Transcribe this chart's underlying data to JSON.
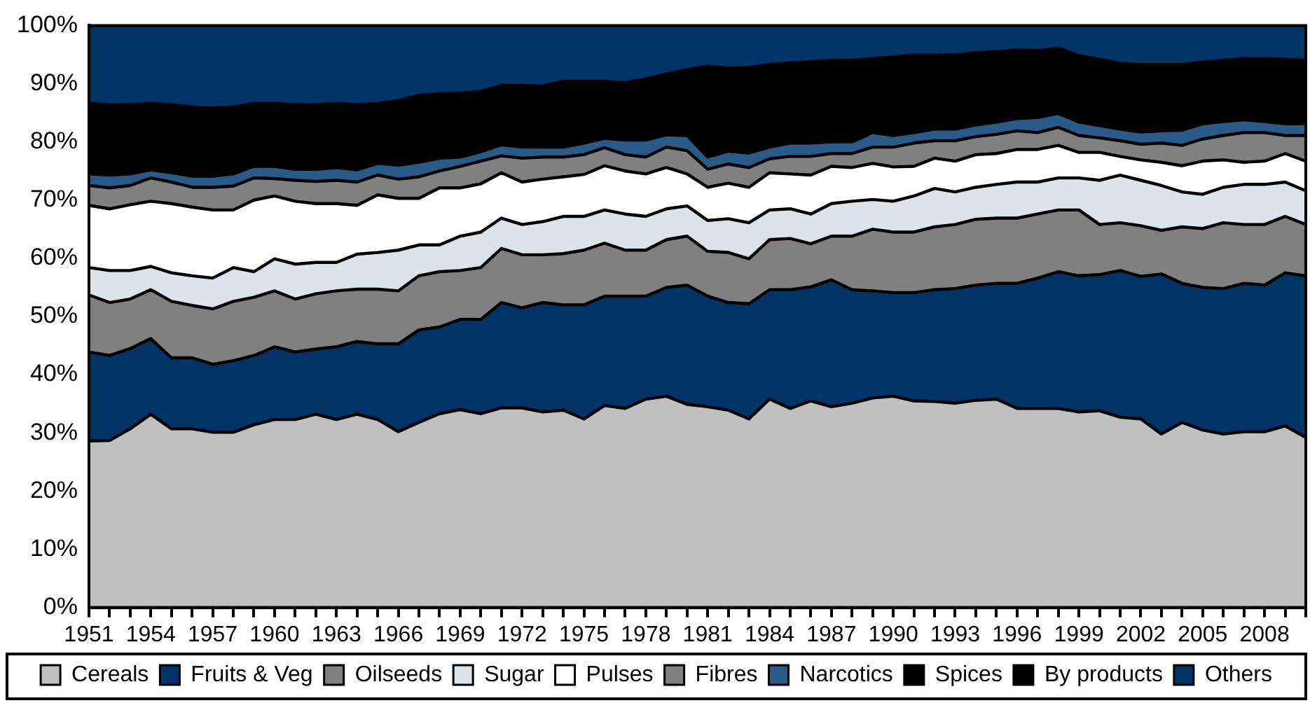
{
  "chart_data": {
    "type": "area",
    "stacked": true,
    "legend": "bottom",
    "marker": "none",
    "categories": [
      "1951",
      null,
      null,
      "1954",
      null,
      null,
      "1957",
      null,
      null,
      "1960",
      null,
      null,
      "1963",
      null,
      null,
      "1966",
      null,
      null,
      "1969",
      null,
      null,
      "1972",
      null,
      null,
      "1975",
      null,
      null,
      "1978",
      null,
      null,
      "1981",
      null,
      null,
      "1984",
      null,
      null,
      "1987",
      null,
      null,
      "1990",
      null,
      null,
      "1993",
      null,
      null,
      "1996",
      null,
      null,
      "1999",
      null,
      null,
      "2002",
      null,
      null,
      "2005",
      null,
      null,
      "2008",
      null,
      null
    ],
    "ylim": [
      0,
      100
    ],
    "yticks": [
      {
        "value": 0,
        "label": "0%"
      },
      {
        "value": 10,
        "label": "10%"
      },
      {
        "value": 20,
        "label": "20%"
      },
      {
        "value": 30,
        "label": "30%"
      },
      {
        "value": 40,
        "label": "40%"
      },
      {
        "value": 50,
        "label": "50%"
      },
      {
        "value": 60,
        "label": "60%"
      },
      {
        "value": 70,
        "label": "70%"
      },
      {
        "value": 80,
        "label": "80%"
      },
      {
        "value": 90,
        "label": "90%"
      },
      {
        "value": 100,
        "label": "100%"
      }
    ],
    "series": [
      {
        "name": "Cereals",
        "color": "#c0c0c0",
        "values": [
          28.6,
          28.7,
          30.7,
          33.2,
          30.7,
          30.7,
          30.1,
          30.1,
          31.4,
          32.3,
          32.3,
          33.2,
          32.3,
          33.2,
          32.3,
          30.2,
          31.8,
          33.3,
          34.0,
          33.3,
          34.3,
          34.3,
          33.6,
          33.9,
          32.4,
          34.7,
          34.2,
          35.8,
          36.3,
          34.9,
          34.5,
          33.9,
          32.4,
          35.8,
          34.2,
          35.5,
          34.5,
          35.1,
          36.0,
          36.3,
          35.5,
          35.4,
          35.1,
          35.6,
          35.8,
          34.2,
          34.2,
          34.2,
          33.6,
          33.8,
          32.7,
          32.4,
          29.8,
          31.8,
          30.5,
          29.8,
          30.2,
          30.2,
          31.2,
          29.2
        ]
      },
      {
        "name": "Fruits & Veg",
        "color": "#003366",
        "values": [
          15.3,
          14.6,
          13.8,
          13.0,
          12.2,
          12.2,
          11.7,
          12.3,
          11.9,
          12.5,
          11.6,
          11.2,
          12.5,
          12.5,
          13.0,
          15.1,
          15.9,
          14.9,
          15.5,
          16.2,
          18.1,
          17.2,
          18.8,
          18.1,
          19.6,
          18.8,
          19.3,
          17.7,
          18.7,
          20.5,
          19.0,
          18.5,
          19.8,
          18.8,
          20.4,
          19.6,
          21.8,
          19.5,
          18.4,
          17.8,
          18.6,
          19.2,
          19.7,
          19.8,
          19.9,
          21.5,
          22.4,
          23.5,
          23.4,
          23.4,
          25.2,
          24.5,
          27.5,
          23.9,
          24.5,
          25.0,
          25.5,
          25.2,
          26.3,
          27.8
        ]
      },
      {
        "name": "Oilseeds",
        "color": "#808080",
        "values": [
          9.8,
          9.1,
          8.5,
          8.4,
          9.7,
          9.0,
          9.5,
          10.2,
          10.0,
          9.6,
          9.1,
          9.5,
          9.6,
          9.0,
          9.4,
          9.1,
          9.3,
          9.5,
          8.4,
          8.9,
          9.3,
          9.1,
          8.2,
          8.8,
          9.4,
          9.1,
          7.9,
          7.9,
          8.2,
          8.4,
          7.7,
          8.6,
          7.7,
          8.6,
          8.8,
          7.4,
          7.5,
          9.2,
          10.6,
          10.4,
          10.4,
          10.8,
          11.0,
          11.3,
          11.2,
          11.2,
          11.0,
          10.6,
          11.3,
          8.6,
          8.2,
          8.7,
          7.5,
          9.7,
          10.1,
          11.3,
          10.1,
          10.4,
          9.7,
          8.8
        ]
      },
      {
        "name": "Sugar",
        "color": "#dde3ea",
        "values": [
          4.7,
          5.5,
          4.9,
          4.0,
          4.9,
          5.1,
          5.3,
          5.8,
          4.4,
          5.5,
          6.0,
          5.4,
          4.9,
          6.0,
          6.3,
          7.0,
          5.3,
          4.6,
          5.9,
          6.1,
          5.2,
          5.2,
          5.7,
          6.4,
          5.8,
          5.7,
          6.2,
          5.8,
          5.3,
          5.2,
          5.3,
          5.8,
          6.2,
          5.1,
          5.1,
          5.1,
          5.6,
          6.0,
          5.1,
          5.3,
          6.2,
          6.6,
          5.6,
          5.5,
          5.8,
          6.2,
          5.5,
          5.5,
          5.5,
          7.6,
          8.2,
          7.8,
          7.7,
          6.0,
          5.9,
          6.1,
          6.9,
          6.9,
          5.9,
          5.8
        ]
      },
      {
        "name": "Pulses",
        "color": "#ffffff",
        "values": [
          10.7,
          10.6,
          11.3,
          11.2,
          11.9,
          11.8,
          11.7,
          9.9,
          12.3,
          10.8,
          10.8,
          10.1,
          10.1,
          8.4,
          9.9,
          8.9,
          8.0,
          9.8,
          8.3,
          8.3,
          7.8,
          7.3,
          7.3,
          6.8,
          7.2,
          7.6,
          7.4,
          7.3,
          7.1,
          5.5,
          5.7,
          6.1,
          6.1,
          6.4,
          6.0,
          6.7,
          6.4,
          5.8,
          6.2,
          5.9,
          5.1,
          5.2,
          5.3,
          5.6,
          5.3,
          5.6,
          5.6,
          5.6,
          4.4,
          4.8,
          3.2,
          3.5,
          4.0,
          4.5,
          5.7,
          4.7,
          3.8,
          4.0,
          4.9,
          5.1
        ]
      },
      {
        "name": "Fibres",
        "color": "#808080",
        "values": [
          3.4,
          3.6,
          3.3,
          4.0,
          3.7,
          3.4,
          3.9,
          4.1,
          3.8,
          3.0,
          3.6,
          3.8,
          4.0,
          4.0,
          3.4,
          3.3,
          3.7,
          2.9,
          3.7,
          3.9,
          2.9,
          4.1,
          3.8,
          3.4,
          3.4,
          3.1,
          2.8,
          2.9,
          3.5,
          4.0,
          3.1,
          3.3,
          3.4,
          2.4,
          3.0,
          3.2,
          2.2,
          2.4,
          2.8,
          3.4,
          4.0,
          3.0,
          3.5,
          3.1,
          3.3,
          3.2,
          2.9,
          3.1,
          2.9,
          2.5,
          2.7,
          2.7,
          3.3,
          3.5,
          3.8,
          4.2,
          5.1,
          4.9,
          3.1,
          4.4
        ]
      },
      {
        "name": "Narcotics",
        "color": "#2a5a88",
        "values": [
          2.0,
          2.2,
          2.0,
          1.4,
          1.6,
          1.9,
          1.9,
          2.1,
          2.0,
          2.1,
          1.9,
          2.1,
          2.2,
          2.1,
          2.0,
          2.4,
          2.5,
          2.2,
          1.6,
          1.6,
          1.9,
          1.9,
          1.7,
          1.7,
          2.0,
          1.6,
          2.5,
          2.9,
          2.1,
          2.6,
          2.1,
          2.2,
          2.5,
          2.0,
          2.3,
          2.3,
          2.0,
          2.0,
          2.5,
          2.0,
          1.8,
          2.0,
          2.0,
          2.0,
          2.1,
          2.1,
          2.6,
          2.4,
          2.3,
          2.1,
          2.0,
          2.1,
          2.1,
          2.6,
          2.6,
          2.4,
          2.2,
          1.9,
          2.0,
          2.0
        ]
      },
      {
        "name": "Spices",
        "color": "#000000",
        "values": [
          2.0,
          2.0,
          2.0,
          2.0,
          2.0,
          2.0,
          2.0,
          2.0,
          2.0,
          2.0,
          2.0,
          2.0,
          2.0,
          2.0,
          2.0,
          2.0,
          2.0,
          2.0,
          2.0,
          2.0,
          2.0,
          2.0,
          2.0,
          2.0,
          2.0,
          2.0,
          2.0,
          2.0,
          2.0,
          2.0,
          2.0,
          2.0,
          2.0,
          2.0,
          2.0,
          2.0,
          2.0,
          2.0,
          2.0,
          2.0,
          2.0,
          2.0,
          2.0,
          2.0,
          2.0,
          2.0,
          2.0,
          2.0,
          2.0,
          2.0,
          2.0,
          2.0,
          2.0,
          2.0,
          2.0,
          2.0,
          2.0,
          2.0,
          2.0,
          2.0
        ]
      },
      {
        "name": "By products",
        "color": "#000000",
        "values": [
          10.1,
          10.1,
          9.9,
          9.4,
          9.7,
          9.9,
          9.7,
          9.5,
          8.8,
          8.8,
          9.1,
          9.1,
          9.0,
          9.2,
          8.3,
          9.1,
          9.5,
          9.1,
          9.0,
          8.4,
          8.2,
          8.6,
          8.5,
          9.3,
          8.6,
          7.8,
          7.9,
          8.5,
          8.5,
          9.3,
          13.6,
          12.3,
          12.7,
          12.2,
          11.8,
          12.0,
          12.0,
          12.0,
          10.7,
          11.5,
          11.3,
          10.7,
          10.8,
          10.4,
          10.1,
          9.8,
          9.5,
          9.2,
          9.4,
          9.4,
          9.3,
          9.6,
          9.4,
          9.3,
          8.6,
          8.5,
          8.5,
          8.8,
          9.1,
          8.9
        ]
      },
      {
        "name": "Others",
        "color": "#003366",
        "values": [
          13.4,
          13.6,
          13.6,
          13.4,
          13.6,
          14.0,
          14.2,
          14.0,
          13.4,
          13.4,
          13.6,
          13.6,
          13.4,
          13.6,
          13.4,
          12.9,
          12.0,
          11.7,
          11.6,
          11.3,
          10.3,
          10.3,
          10.4,
          9.6,
          9.6,
          9.6,
          9.8,
          9.2,
          8.3,
          7.6,
          7.0,
          7.3,
          7.2,
          6.7,
          6.4,
          6.2,
          6.0,
          6.0,
          5.7,
          5.4,
          5.1,
          5.1,
          5.0,
          4.7,
          4.5,
          4.2,
          4.3,
          3.9,
          5.2,
          5.8,
          6.5,
          6.7,
          6.7,
          6.7,
          6.3,
          6.0,
          5.7,
          5.7,
          5.8,
          6.0
        ]
      }
    ]
  }
}
